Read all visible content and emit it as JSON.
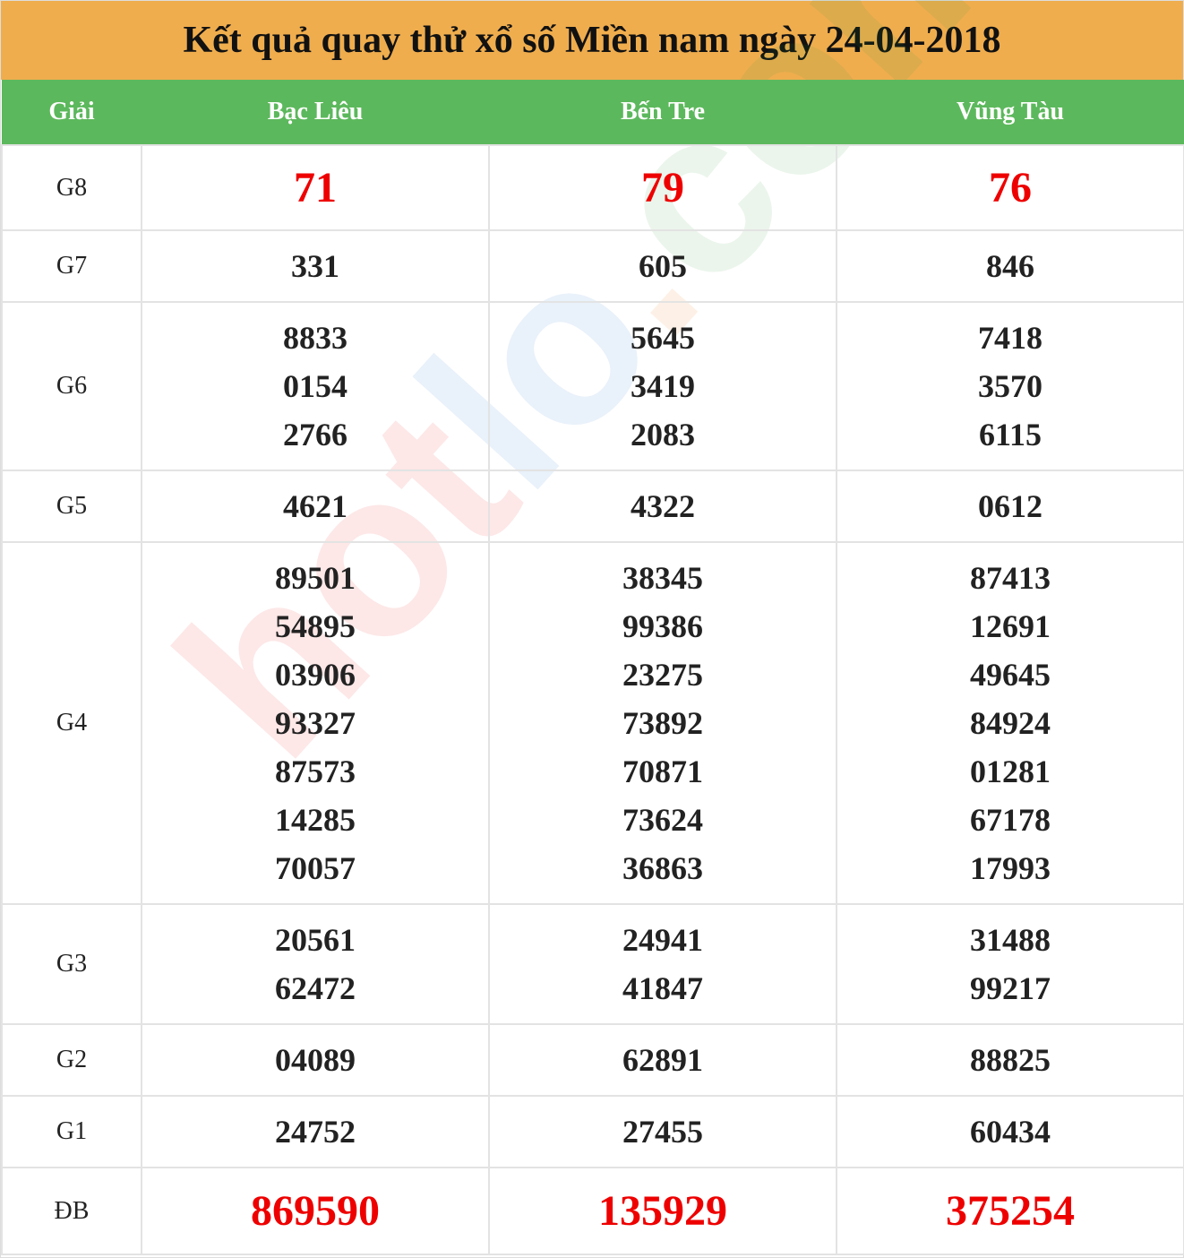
{
  "title": "Kết quả quay thử xổ số Miền nam ngày 24-04-2018",
  "watermark": "hotlo.com",
  "colors": {
    "title_bg": "#efad4e",
    "header_bg": "#5cb85c",
    "highlight": "#e00000"
  },
  "columns": [
    "Giải",
    "Bạc Liêu",
    "Bến Tre",
    "Vũng Tàu"
  ],
  "rows": [
    {
      "prize": "G8",
      "values": [
        [
          "71"
        ],
        [
          "79"
        ],
        [
          "76"
        ]
      ]
    },
    {
      "prize": "G7",
      "values": [
        [
          "331"
        ],
        [
          "605"
        ],
        [
          "846"
        ]
      ]
    },
    {
      "prize": "G6",
      "values": [
        [
          "8833",
          "0154",
          "2766"
        ],
        [
          "5645",
          "3419",
          "2083"
        ],
        [
          "7418",
          "3570",
          "6115"
        ]
      ]
    },
    {
      "prize": "G5",
      "values": [
        [
          "4621"
        ],
        [
          "4322"
        ],
        [
          "0612"
        ]
      ]
    },
    {
      "prize": "G4",
      "values": [
        [
          "89501",
          "54895",
          "03906",
          "93327",
          "87573",
          "14285",
          "70057"
        ],
        [
          "38345",
          "99386",
          "23275",
          "73892",
          "70871",
          "73624",
          "36863"
        ],
        [
          "87413",
          "12691",
          "49645",
          "84924",
          "01281",
          "67178",
          "17993"
        ]
      ]
    },
    {
      "prize": "G3",
      "values": [
        [
          "20561",
          "62472"
        ],
        [
          "24941",
          "41847"
        ],
        [
          "31488",
          "99217"
        ]
      ]
    },
    {
      "prize": "G2",
      "values": [
        [
          "04089"
        ],
        [
          "62891"
        ],
        [
          "88825"
        ]
      ]
    },
    {
      "prize": "G1",
      "values": [
        [
          "24752"
        ],
        [
          "27455"
        ],
        [
          "60434"
        ]
      ]
    },
    {
      "prize": "ĐB",
      "values": [
        [
          "869590"
        ],
        [
          "135929"
        ],
        [
          "375254"
        ]
      ]
    }
  ]
}
